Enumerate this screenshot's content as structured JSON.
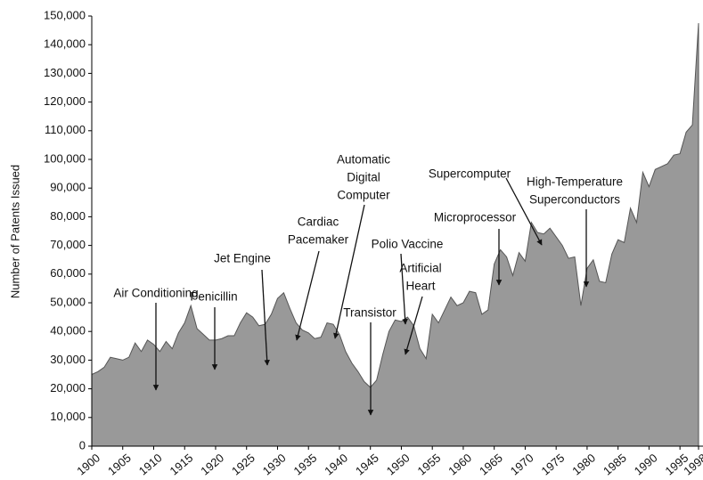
{
  "chart_data": {
    "type": "area",
    "ylabel": "Number of Patents Issued",
    "x": [
      1900,
      1901,
      1902,
      1903,
      1904,
      1905,
      1906,
      1907,
      1908,
      1909,
      1910,
      1911,
      1912,
      1913,
      1914,
      1915,
      1916,
      1917,
      1918,
      1919,
      1920,
      1921,
      1922,
      1923,
      1924,
      1925,
      1926,
      1927,
      1928,
      1929,
      1930,
      1931,
      1932,
      1933,
      1934,
      1935,
      1936,
      1937,
      1938,
      1939,
      1940,
      1941,
      1942,
      1943,
      1944,
      1945,
      1946,
      1947,
      1948,
      1949,
      1950,
      1951,
      1952,
      1953,
      1954,
      1955,
      1956,
      1957,
      1958,
      1959,
      1960,
      1961,
      1962,
      1963,
      1964,
      1965,
      1966,
      1967,
      1968,
      1969,
      1970,
      1971,
      1972,
      1973,
      1974,
      1975,
      1976,
      1977,
      1978,
      1979,
      1980,
      1981,
      1982,
      1983,
      1984,
      1985,
      1986,
      1987,
      1988,
      1989,
      1990,
      1991,
      1992,
      1993,
      1994,
      1995,
      1996,
      1997,
      1998
    ],
    "series": [
      {
        "color": "#999999",
        "values": [
          25000,
          26000,
          27500,
          31000,
          30500,
          30000,
          31000,
          36000,
          33000,
          37000,
          35500,
          33000,
          36500,
          34000,
          39500,
          43000,
          49000,
          41000,
          39000,
          37000,
          37000,
          37500,
          38500,
          38500,
          43000,
          46500,
          45000,
          42000,
          42500,
          46000,
          51500,
          53500,
          48000,
          43000,
          40500,
          39500,
          37500,
          38000,
          43000,
          42500,
          39000,
          33000,
          29000,
          26000,
          22500,
          20500,
          23000,
          32000,
          40000,
          44000,
          43500,
          45000,
          42000,
          34000,
          30500,
          46000,
          43000,
          47500,
          52000,
          49000,
          50000,
          54000,
          53500,
          46000,
          47500,
          63500,
          68500,
          66000,
          59500,
          67500,
          64500,
          78000,
          74500,
          74000,
          76000,
          73000,
          70000,
          65500,
          66000,
          49000,
          62000,
          65000,
          57500,
          57000,
          67000,
          72000,
          71000,
          83000,
          78000,
          95500,
          90500,
          96500,
          97500,
          98500,
          101500,
          102000,
          109500,
          112000,
          147500
        ]
      }
    ],
    "xlim": [
      1900,
      1998
    ],
    "xticks": [
      1900,
      1905,
      1910,
      1915,
      1920,
      1925,
      1930,
      1935,
      1940,
      1945,
      1950,
      1955,
      1960,
      1965,
      1970,
      1975,
      1980,
      1985,
      1990,
      1995,
      1998
    ],
    "ylim": [
      0,
      150000
    ],
    "yticks": [
      0,
      {
        "value": 10000,
        "label": "10,000"
      },
      {
        "value": 20000,
        "label": "20,000"
      },
      {
        "value": 30000,
        "label": "30,000"
      },
      {
        "value": 40000,
        "label": "40,000"
      },
      {
        "value": 50000,
        "label": "50,000"
      },
      {
        "value": 60000,
        "label": "60,000"
      },
      {
        "value": 70000,
        "label": "70,000"
      },
      {
        "value": 80000,
        "label": "80,000"
      },
      {
        "value": 90000,
        "label": "90,000"
      },
      {
        "value": 100000,
        "label": "100,000"
      },
      {
        "value": 110000,
        "label": "110,000"
      },
      {
        "value": 120000,
        "label": "120,000"
      },
      {
        "value": 130000,
        "label": "130,000"
      },
      {
        "value": 140000,
        "label": "140,000"
      },
      {
        "value": 150000,
        "label": "150,000"
      }
    ],
    "grid": false,
    "annotations": [
      {
        "lines": [
          "Air Conditioning"
        ]
      },
      {
        "lines": [
          "Penicillin"
        ]
      },
      {
        "lines": [
          "Jet Engine"
        ]
      },
      {
        "lines": [
          "Cardiac",
          "Pacemaker"
        ]
      },
      {
        "lines": [
          "Automatic",
          "Digital",
          "Computer"
        ]
      },
      {
        "lines": [
          "Transistor"
        ]
      },
      {
        "lines": [
          "Polio Vaccine"
        ]
      },
      {
        "lines": [
          "Artificial",
          "Heart"
        ]
      },
      {
        "lines": [
          "Microprocessor"
        ]
      },
      {
        "lines": [
          "Supercomputer"
        ]
      },
      {
        "lines": [
          "High-Temperature",
          "Superconductors"
        ]
      }
    ]
  }
}
